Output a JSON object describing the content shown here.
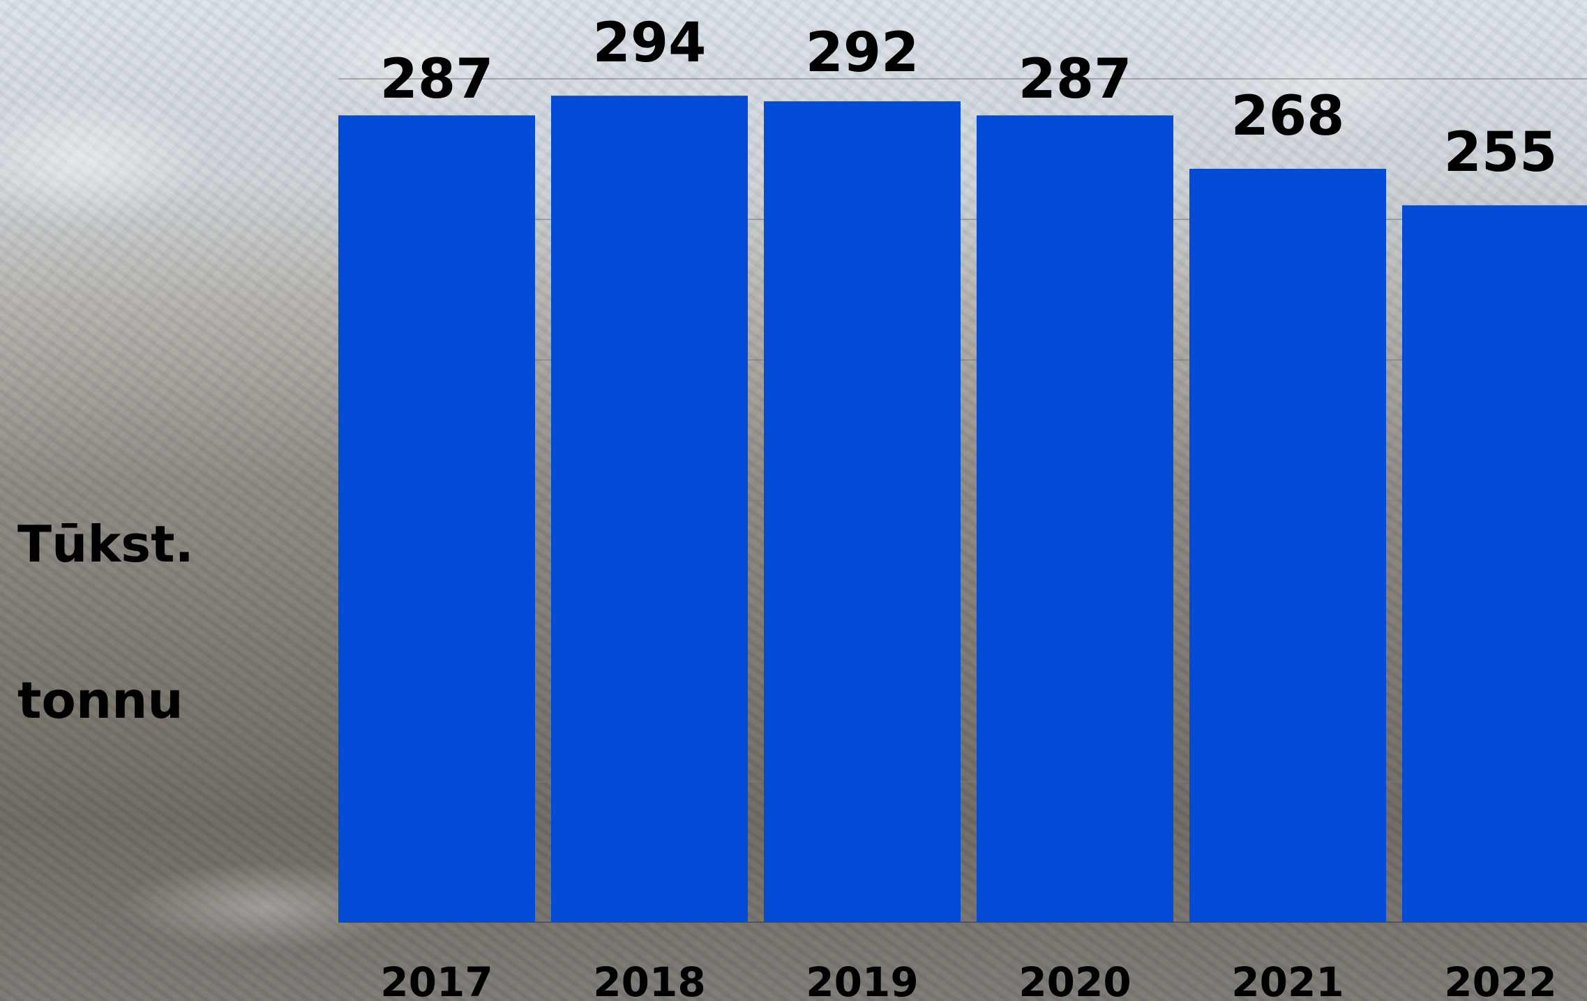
{
  "chart_data": {
    "type": "bar",
    "categories": [
      "2017",
      "2018",
      "2019",
      "2020",
      "2021",
      "2022"
    ],
    "values": [
      287,
      294,
      292,
      287,
      268,
      255
    ],
    "value_labels": [
      "287",
      "294",
      "292",
      "287",
      "268",
      "255"
    ],
    "ylabel": "Tūkst. tonnu",
    "ylabel_lines": [
      "Tūkst.",
      "tonnu"
    ],
    "ylim": [
      0,
      300
    ],
    "grid": true,
    "colors": {
      "bar": "#014bd6",
      "text": "#000000"
    }
  }
}
